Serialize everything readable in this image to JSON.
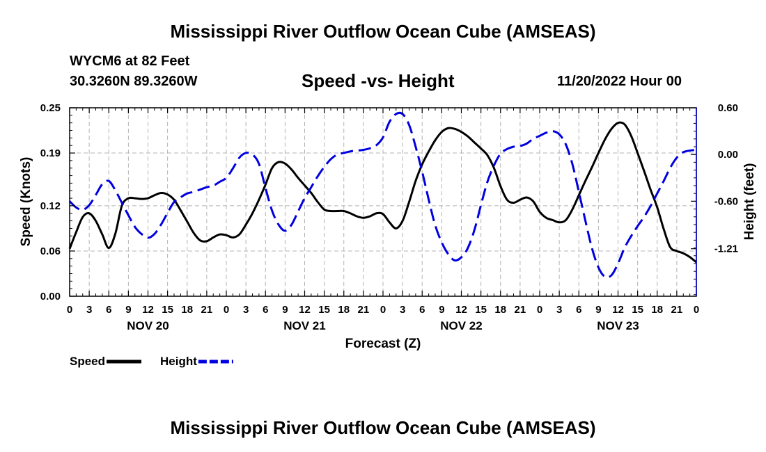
{
  "header": {
    "title": "Mississippi River Outflow Ocean Cube (AMSEAS)",
    "station": "WYCM6 at 82 Feet",
    "coordinates": "30.3260N  89.3260W",
    "subtitle": "Speed -vs- Height",
    "datetime": "11/20/2022 Hour 00"
  },
  "footer": {
    "title": "Mississippi River Outflow Ocean Cube (AMSEAS)"
  },
  "chart_data": {
    "type": "line",
    "title": "Speed -vs- Height",
    "xlabel": "Forecast (Z)",
    "ylabel": "Speed (Knots)",
    "y2label": "Height (feet)",
    "x_range_hours": [
      0,
      96
    ],
    "ylim": [
      0,
      0.25
    ],
    "y2lim": [
      -1.82,
      0.6
    ],
    "y_ticks": [
      "0.25",
      "0.19",
      "0.12",
      "0.06",
      "0.00"
    ],
    "y_tick_values": [
      0.25,
      0.19,
      0.12,
      0.06,
      0.0
    ],
    "y2_ticks": [
      "0.60",
      "0.00",
      "-0.60",
      "-1.21"
    ],
    "y2_tick_values": [
      0.6,
      0.0,
      -0.6,
      -1.21
    ],
    "x_tick_labels": [
      "0",
      "3",
      "6",
      "9",
      "12",
      "15",
      "18",
      "21",
      "0",
      "3",
      "6",
      "9",
      "12",
      "15",
      "18",
      "21",
      "0",
      "3",
      "6",
      "9",
      "12",
      "15",
      "18",
      "21",
      "0",
      "3",
      "6",
      "9",
      "12",
      "15",
      "18",
      "21",
      "0"
    ],
    "day_labels": [
      {
        "label": "NOV 20",
        "hour": 12
      },
      {
        "label": "NOV 21",
        "hour": 36
      },
      {
        "label": "NOV 22",
        "hour": 60
      },
      {
        "label": "NOV 23",
        "hour": 84
      }
    ],
    "grid": true,
    "legend_position": "bottom-left",
    "series": [
      {
        "name": "Speed",
        "axis": "left",
        "color": "#000000",
        "style": "solid",
        "x": [
          0,
          1,
          2,
          3,
          4,
          5,
          6,
          7,
          8,
          9,
          10,
          11,
          12,
          13,
          14,
          15,
          16,
          17,
          18,
          19,
          20,
          21,
          22,
          23,
          24,
          25,
          26,
          27,
          28,
          29,
          30,
          31,
          32,
          33,
          34,
          35,
          36,
          37,
          38,
          39,
          40,
          41,
          42,
          43,
          44,
          45,
          46,
          47,
          48,
          49,
          50,
          51,
          52,
          53,
          54,
          55,
          56,
          57,
          58,
          59,
          60,
          61,
          62,
          63,
          64,
          65,
          66,
          67,
          68,
          69,
          70,
          71,
          72,
          73,
          74,
          75,
          76,
          77,
          78,
          79,
          80,
          81,
          82,
          83,
          84,
          85,
          86,
          87,
          88,
          89,
          90,
          91,
          92,
          93,
          94,
          95,
          96
        ],
        "values": [
          0.063,
          0.085,
          0.105,
          0.11,
          0.1,
          0.082,
          0.064,
          0.083,
          0.12,
          0.13,
          0.13,
          0.129,
          0.13,
          0.134,
          0.137,
          0.135,
          0.128,
          0.114,
          0.099,
          0.084,
          0.074,
          0.073,
          0.078,
          0.082,
          0.081,
          0.078,
          0.082,
          0.095,
          0.11,
          0.128,
          0.148,
          0.17,
          0.178,
          0.176,
          0.168,
          0.157,
          0.147,
          0.137,
          0.125,
          0.115,
          0.113,
          0.113,
          0.113,
          0.11,
          0.106,
          0.104,
          0.106,
          0.11,
          0.109,
          0.098,
          0.09,
          0.1,
          0.125,
          0.153,
          0.175,
          0.192,
          0.207,
          0.218,
          0.223,
          0.222,
          0.218,
          0.212,
          0.204,
          0.196,
          0.187,
          0.17,
          0.146,
          0.128,
          0.124,
          0.128,
          0.131,
          0.126,
          0.112,
          0.104,
          0.101,
          0.098,
          0.101,
          0.115,
          0.134,
          0.153,
          0.171,
          0.19,
          0.208,
          0.222,
          0.23,
          0.228,
          0.213,
          0.19,
          0.166,
          0.141,
          0.118,
          0.089,
          0.065,
          0.06,
          0.057,
          0.052,
          0.045
        ]
      },
      {
        "name": "Height",
        "axis": "right",
        "color": "#0000e0",
        "style": "dashed",
        "x": [
          0,
          1,
          2,
          3,
          4,
          5,
          6,
          7,
          8,
          9,
          10,
          11,
          12,
          13,
          14,
          15,
          16,
          17,
          18,
          19,
          20,
          21,
          22,
          23,
          24,
          25,
          26,
          27,
          28,
          29,
          30,
          31,
          32,
          33,
          34,
          35,
          36,
          37,
          38,
          39,
          40,
          41,
          42,
          43,
          44,
          45,
          46,
          47,
          48,
          49,
          50,
          51,
          52,
          53,
          54,
          55,
          56,
          57,
          58,
          59,
          60,
          61,
          62,
          63,
          64,
          65,
          66,
          67,
          68,
          69,
          70,
          71,
          72,
          73,
          74,
          75,
          76,
          77,
          78,
          79,
          80,
          81,
          82,
          83,
          84,
          85,
          86,
          87,
          88,
          89,
          90,
          91,
          92,
          93,
          94,
          95,
          96
        ],
        "values": [
          -0.6,
          -0.68,
          -0.71,
          -0.65,
          -0.52,
          -0.38,
          -0.34,
          -0.46,
          -0.62,
          -0.78,
          -0.93,
          -1.02,
          -1.07,
          -1.02,
          -0.9,
          -0.75,
          -0.61,
          -0.55,
          -0.5,
          -0.48,
          -0.45,
          -0.42,
          -0.4,
          -0.35,
          -0.3,
          -0.18,
          -0.04,
          0.02,
          0.0,
          -0.12,
          -0.43,
          -0.72,
          -0.9,
          -0.98,
          -0.9,
          -0.73,
          -0.56,
          -0.42,
          -0.28,
          -0.16,
          -0.06,
          0.0,
          0.02,
          0.04,
          0.05,
          0.06,
          0.08,
          0.12,
          0.22,
          0.42,
          0.52,
          0.52,
          0.38,
          0.1,
          -0.22,
          -0.58,
          -0.91,
          -1.13,
          -1.28,
          -1.36,
          -1.32,
          -1.2,
          -0.97,
          -0.65,
          -0.35,
          -0.14,
          0.01,
          0.07,
          0.1,
          0.11,
          0.14,
          0.2,
          0.24,
          0.28,
          0.3,
          0.26,
          0.13,
          -0.12,
          -0.48,
          -0.85,
          -1.2,
          -1.45,
          -1.57,
          -1.55,
          -1.4,
          -1.2,
          -1.05,
          -0.92,
          -0.8,
          -0.66,
          -0.5,
          -0.34,
          -0.17,
          -0.04,
          0.03,
          0.05,
          0.06
        ]
      }
    ]
  }
}
